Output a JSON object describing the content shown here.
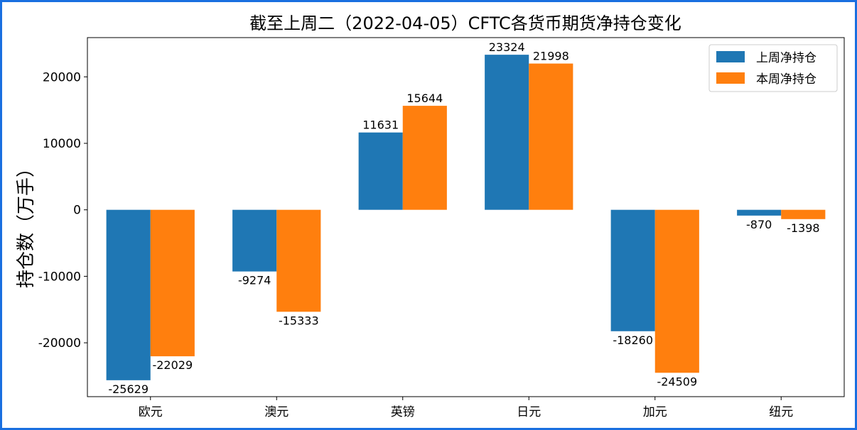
{
  "chart_data": {
    "type": "bar",
    "title": "截至上周二（2022-04-05）CFTC各货币期货净持仓变化",
    "xlabel": "",
    "ylabel": "持仓数（万手）",
    "categories": [
      "欧元",
      "澳元",
      "英镑",
      "日元",
      "加元",
      "纽元"
    ],
    "series": [
      {
        "name": "上周净持仓",
        "values": [
          -25629,
          -9274,
          11631,
          23324,
          -18260,
          -870
        ],
        "color": "#1f77b4"
      },
      {
        "name": "本周净持仓",
        "values": [
          -22029,
          -15333,
          15644,
          21998,
          -24509,
          -1398
        ],
        "color": "#ff7f0e"
      }
    ],
    "ylim": [
      -28100,
      25900
    ],
    "yticks": [
      -20000,
      -10000,
      0,
      10000,
      20000
    ],
    "grid": false,
    "legend_position": "top-right",
    "data_labels": true
  }
}
